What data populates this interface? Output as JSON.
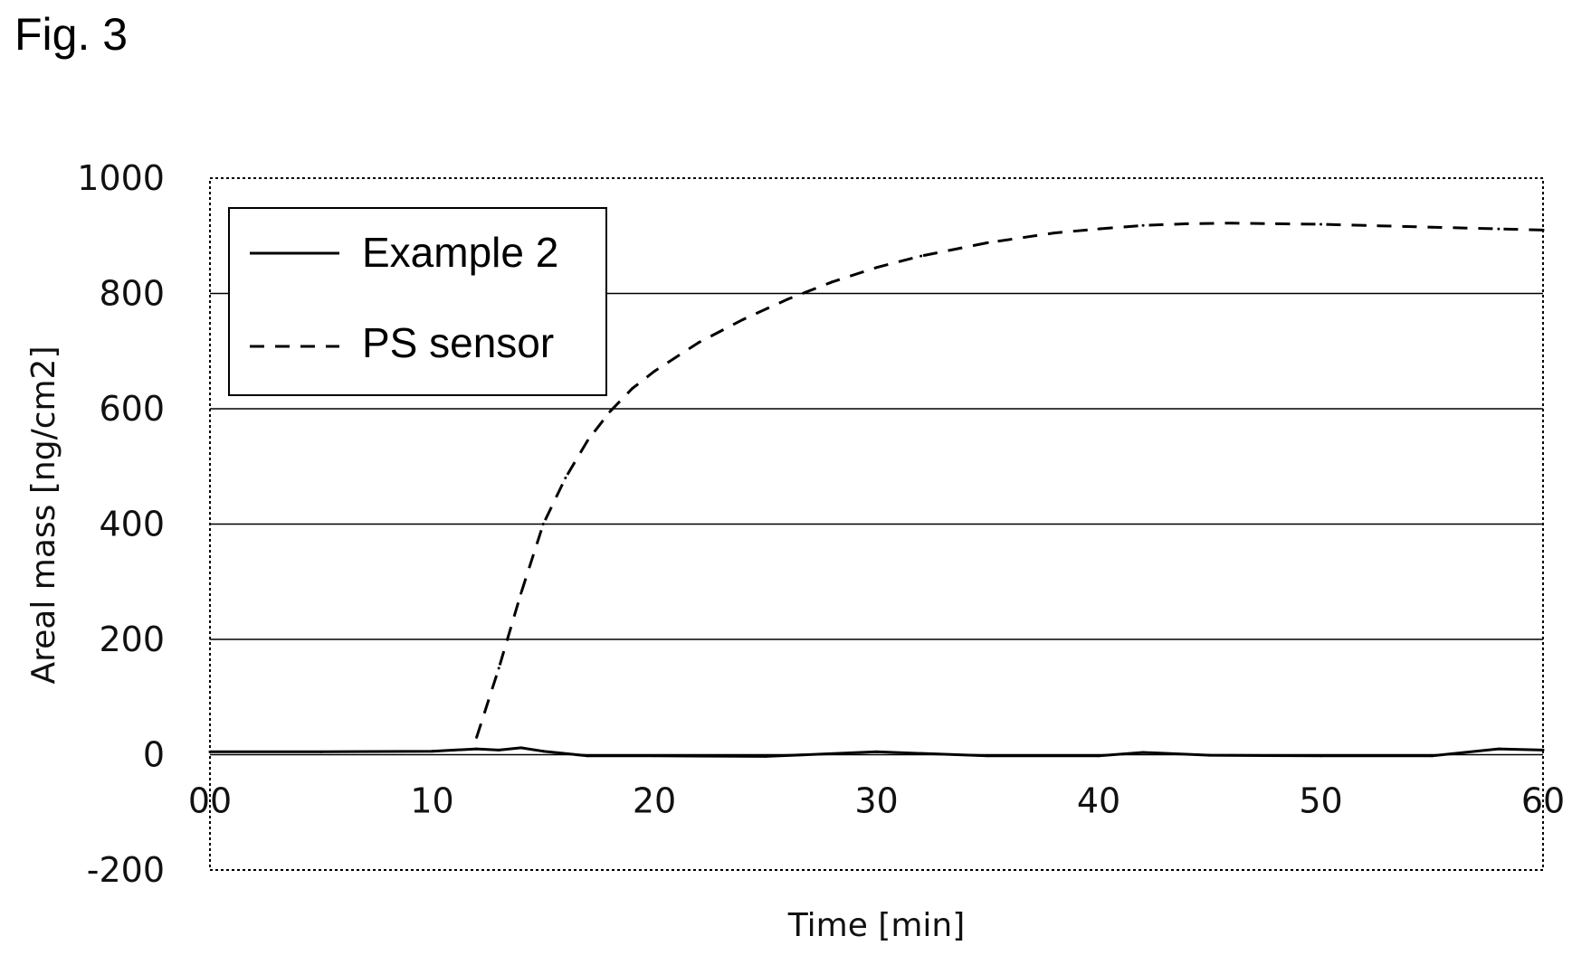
{
  "figure_label": "Fig. 3",
  "chart_data": {
    "type": "line",
    "title": "",
    "xlabel": "Time [min]",
    "ylabel": "Areal mass [ng/cm2]",
    "xlim": [
      0,
      60
    ],
    "ylim": [
      -200,
      1000
    ],
    "x_ticks": [
      0,
      10,
      20,
      30,
      40,
      50,
      60
    ],
    "x_tick_labels": [
      "00",
      "10",
      "20",
      "30",
      "40",
      "50",
      "60"
    ],
    "y_ticks": [
      -200,
      0,
      200,
      400,
      600,
      800,
      1000
    ],
    "y_tick_labels": [
      "-200",
      "0",
      "200",
      "400",
      "600",
      "800",
      "1000"
    ],
    "grid": "horizontal",
    "legend_position": "top-left",
    "series": [
      {
        "name": "Example 2",
        "style": "solid",
        "color": "#000000",
        "x": [
          0,
          5,
          10,
          11,
          12,
          13,
          14,
          15,
          17,
          20,
          25,
          30,
          35,
          40,
          42,
          45,
          50,
          55,
          58,
          60
        ],
        "values": [
          5,
          5,
          6,
          8,
          10,
          8,
          12,
          6,
          -2,
          -2,
          -3,
          5,
          -2,
          -2,
          4,
          -1,
          -2,
          -2,
          10,
          8
        ]
      },
      {
        "name": "PS sensor",
        "style": "dashed",
        "color": "#000000",
        "x": [
          12,
          13,
          14,
          15,
          16,
          17,
          18,
          19,
          20,
          22,
          24,
          26,
          28,
          30,
          32,
          35,
          38,
          40,
          42,
          44,
          46,
          48,
          50,
          52,
          55,
          58,
          60
        ],
        "values": [
          30,
          150,
          280,
          400,
          480,
          545,
          595,
          635,
          665,
          715,
          755,
          790,
          820,
          845,
          865,
          888,
          905,
          912,
          918,
          921,
          922,
          921,
          920,
          918,
          915,
          912,
          910
        ]
      }
    ]
  }
}
